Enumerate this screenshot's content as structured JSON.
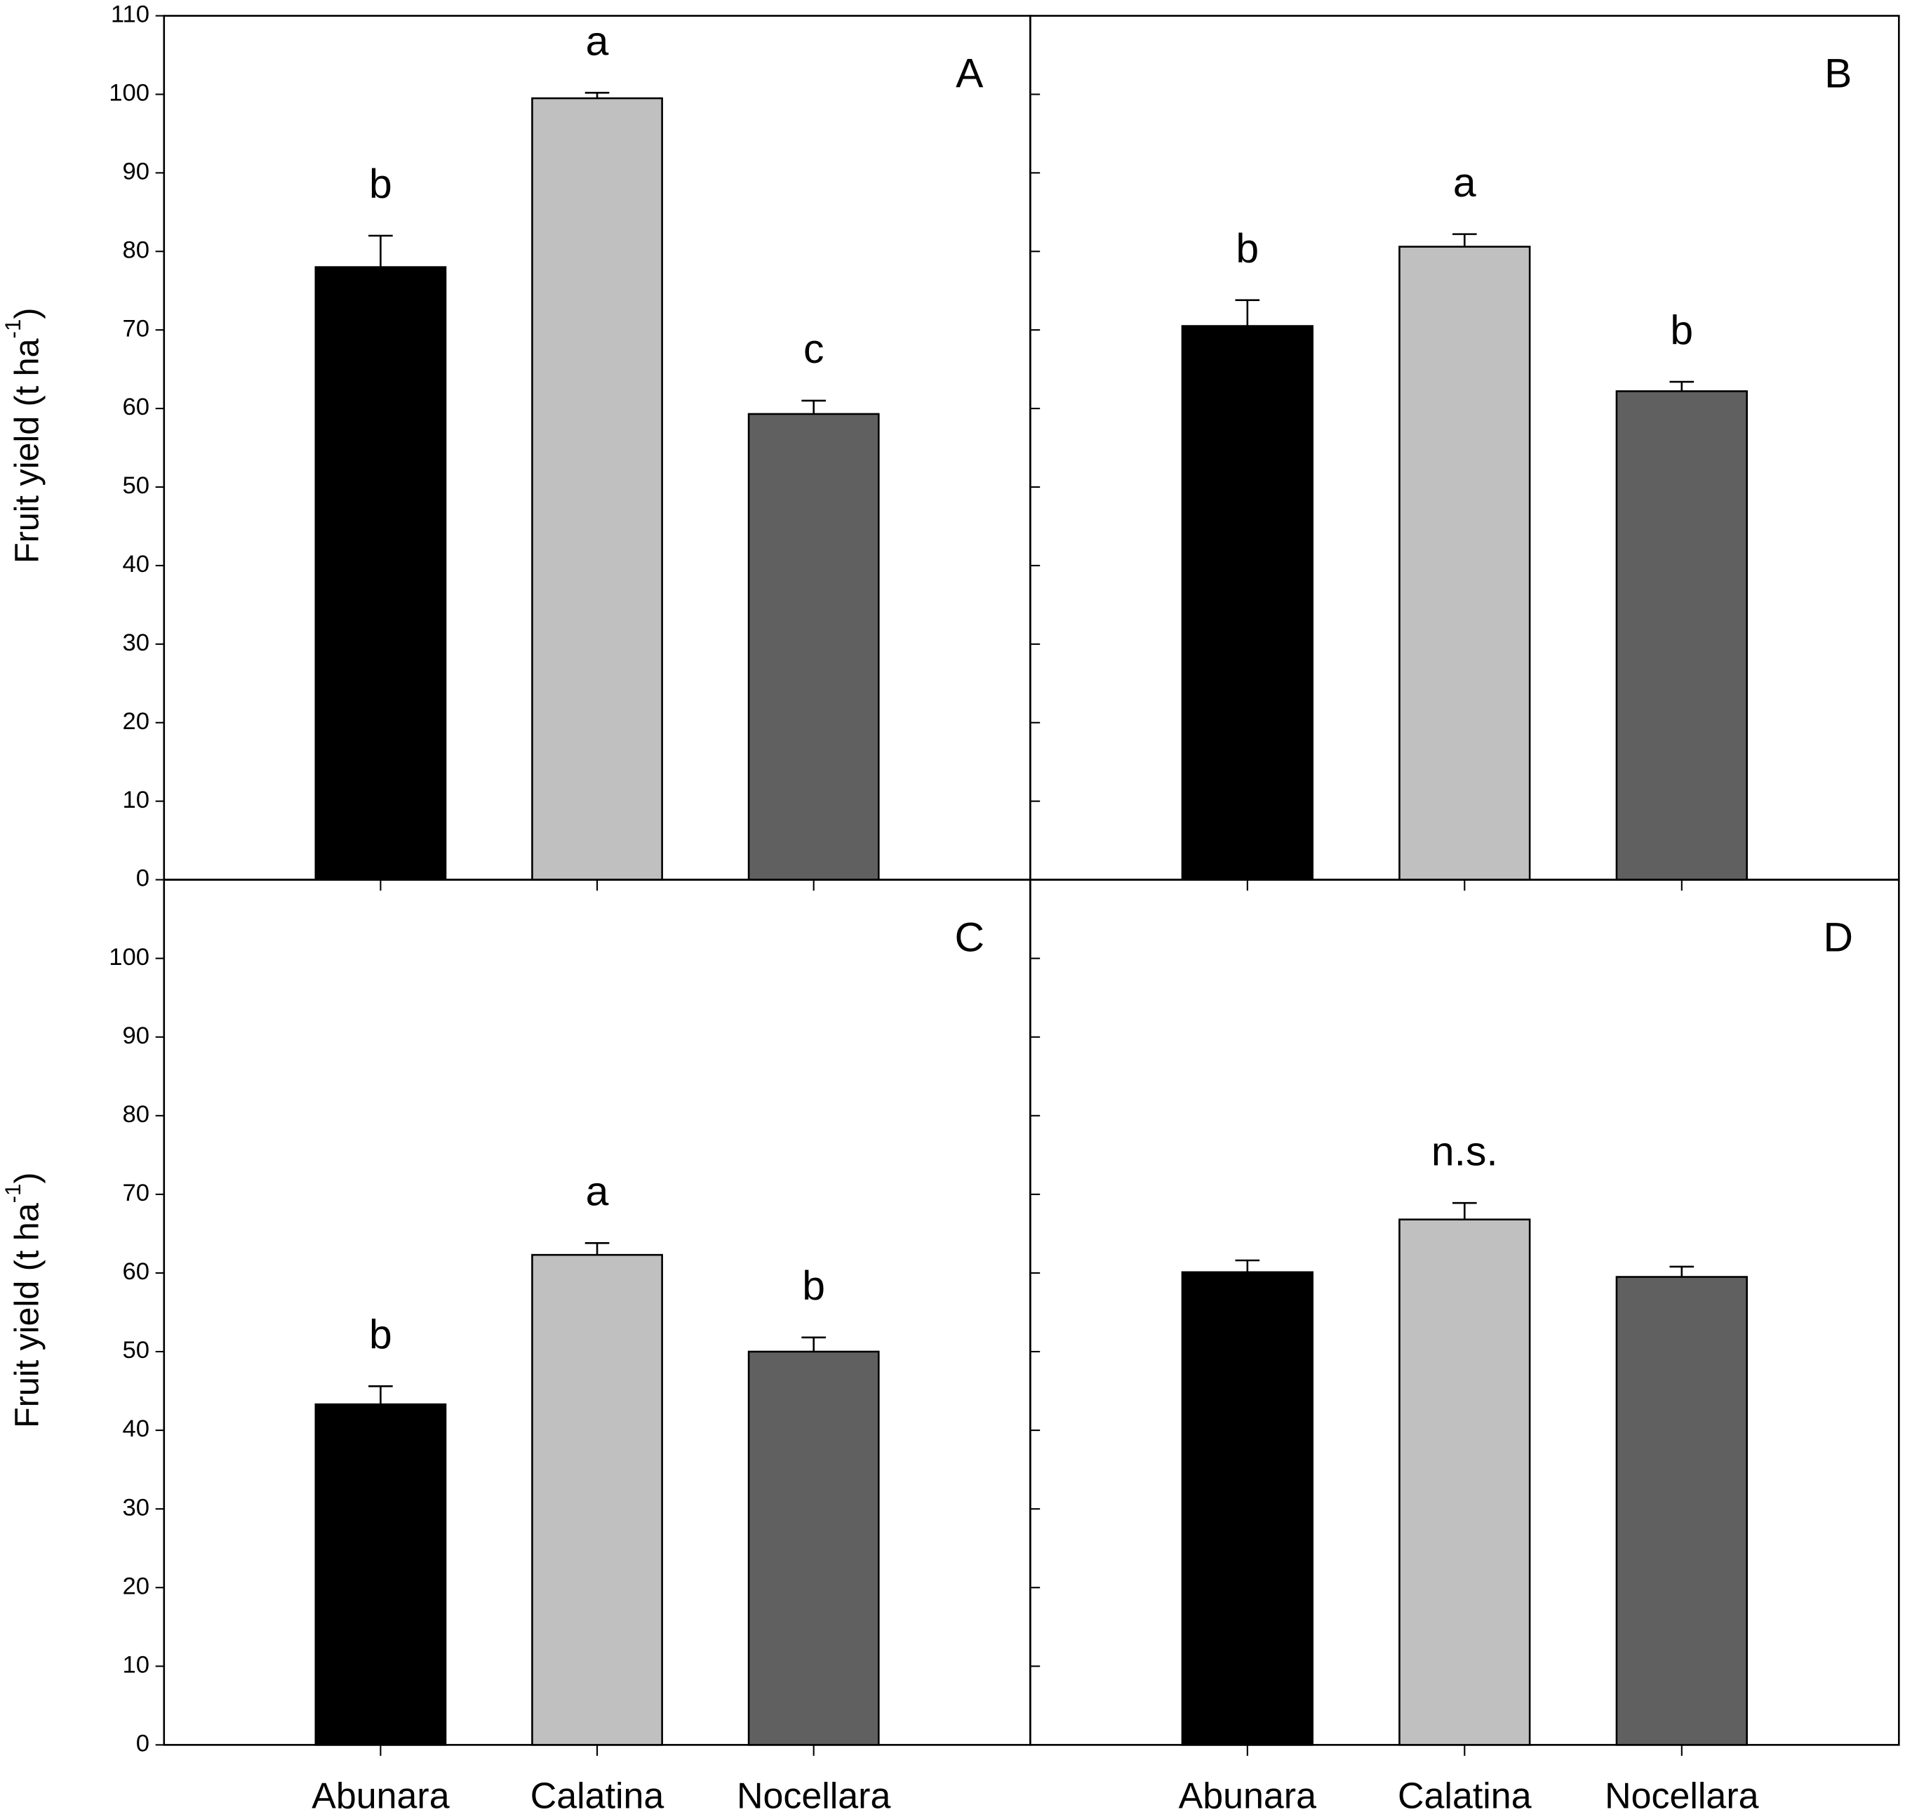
{
  "chart_data": [
    {
      "type": "bar",
      "panel": "A",
      "ylabel": [
        "Fruit yield (t ha",
        "-1",
        ")"
      ],
      "values": [
        78,
        99.5,
        59.3
      ],
      "errors": [
        4,
        0.7,
        1.7
      ],
      "letters": [
        "b",
        "a",
        "c"
      ],
      "colors": [
        "#000000",
        "#c0c0c0",
        "#606060"
      ],
      "ylim": [
        0,
        110
      ],
      "yticks": [
        0,
        10,
        20,
        30,
        40,
        50,
        60,
        70,
        80,
        90,
        100,
        110
      ],
      "ytick_labels": true
    },
    {
      "type": "bar",
      "panel": "B",
      "values": [
        70.5,
        80.6,
        62.2
      ],
      "errors": [
        3.3,
        1.6,
        1.2
      ],
      "letters": [
        "b",
        "a",
        "b"
      ],
      "colors": [
        "#000000",
        "#c0c0c0",
        "#606060"
      ],
      "ylim": [
        0,
        110
      ],
      "yticks": [
        0,
        10,
        20,
        30,
        40,
        50,
        60,
        70,
        80,
        90,
        100,
        110
      ],
      "ytick_labels": false
    },
    {
      "type": "bar",
      "panel": "C",
      "ylabel": [
        "Fruit yield (t ha",
        "-1",
        ")"
      ],
      "categories": [
        "Abunara",
        "Calatina",
        "Nocellara"
      ],
      "values": [
        43.3,
        62.3,
        50
      ],
      "errors": [
        2.3,
        1.5,
        1.8
      ],
      "letters": [
        "b",
        "a",
        "b"
      ],
      "colors": [
        "#000000",
        "#c0c0c0",
        "#606060"
      ],
      "ylim": [
        0,
        110
      ],
      "yticks": [
        0,
        10,
        20,
        30,
        40,
        50,
        60,
        70,
        80,
        90,
        100
      ],
      "ytick_labels": true
    },
    {
      "type": "bar",
      "panel": "D",
      "categories": [
        "Abunara",
        "Calatina",
        "Nocellara"
      ],
      "values": [
        60.1,
        66.8,
        59.5
      ],
      "errors": [
        1.5,
        2.1,
        1.3
      ],
      "letters": [
        null,
        "n.s.",
        null
      ],
      "colors": [
        "#000000",
        "#c0c0c0",
        "#606060"
      ],
      "ylim": [
        0,
        110
      ],
      "yticks": [
        0,
        10,
        20,
        30,
        40,
        50,
        60,
        70,
        80,
        90,
        100
      ],
      "ytick_labels": false
    }
  ]
}
